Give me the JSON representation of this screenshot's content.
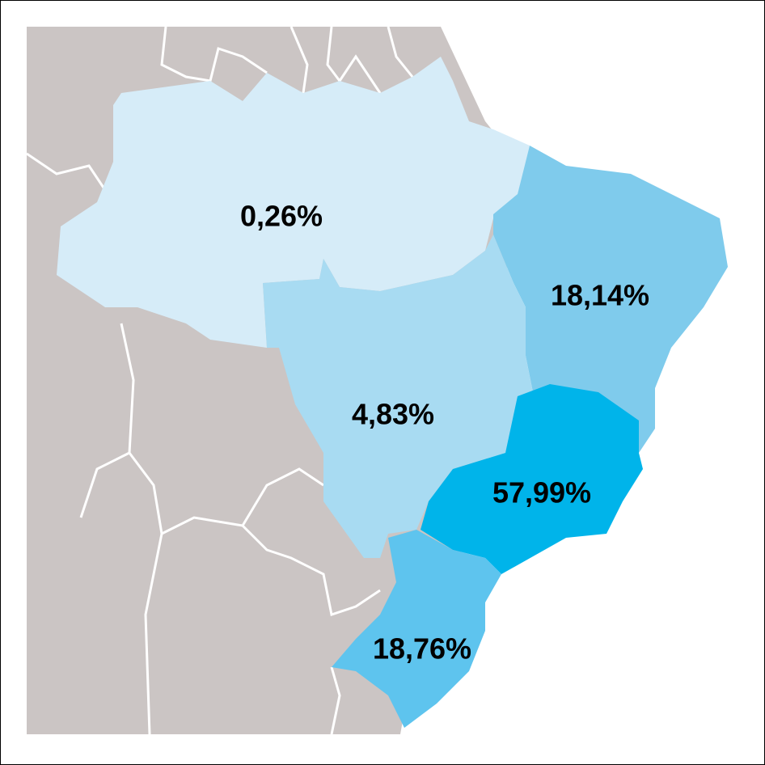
{
  "regions": [
    {
      "label": "0,26%",
      "color": "#d6ecf8"
    },
    {
      "label": "18,14%",
      "color": "#7fcbec"
    },
    {
      "label": "4,83%",
      "color": "#a8dbf2"
    },
    {
      "label": "57,99%",
      "color": "#00b4ea"
    },
    {
      "label": "18,76%",
      "color": "#5ec4ee"
    }
  ]
}
